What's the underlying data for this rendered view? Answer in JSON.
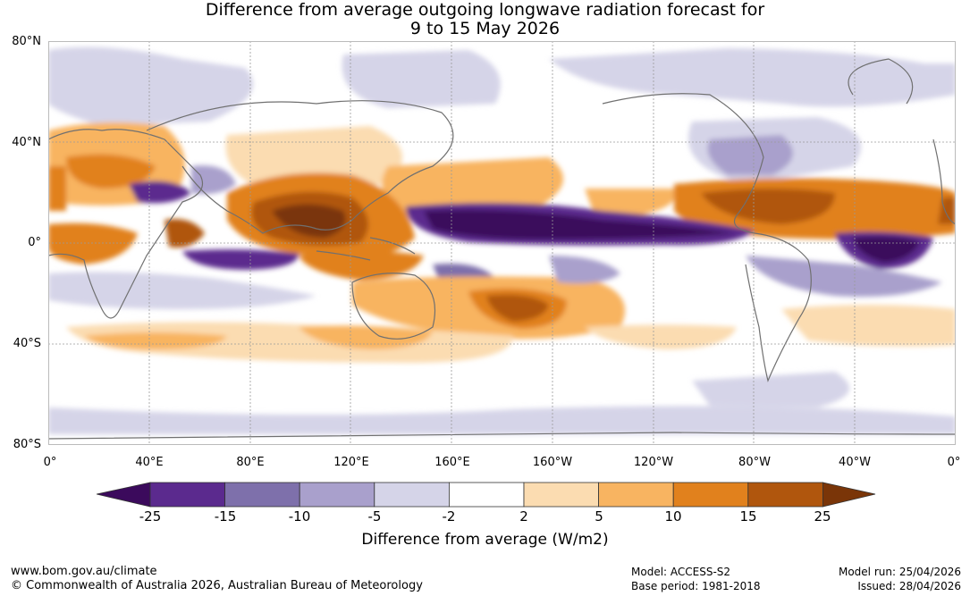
{
  "title": {
    "line1": "Difference from average outgoing longwave radiation forecast for",
    "line2": "9 to 15 May 2026"
  },
  "map": {
    "lat_labels": [
      "80°N",
      "40°N",
      "0°",
      "40°S",
      "80°S"
    ],
    "lon_labels": [
      "0°",
      "40°E",
      "80°E",
      "120°E",
      "160°E",
      "160°W",
      "120°W",
      "80°W",
      "40°W",
      "0°"
    ]
  },
  "colorbar": {
    "title": "Difference from average (W/m2)",
    "ticks": [
      "-25",
      "-15",
      "-10",
      "-5",
      "-2",
      "2",
      "5",
      "10",
      "15",
      "25"
    ],
    "colors": [
      "#3b0a5c",
      "#5b2a8e",
      "#7e70ab",
      "#a9a0cc",
      "#d5d4e8",
      "#ffffff",
      "#fbdcb1",
      "#f8b461",
      "#e1811d",
      "#b0560d",
      "#7a3508"
    ]
  },
  "footer": {
    "website": "www.bom.gov.au/climate",
    "copyright": "© Commonwealth of Australia 2026, Australian Bureau of Meteorology",
    "model": "Model: ACCESS-S2",
    "base_period": "Base period: 1981-2018",
    "model_run": "Model run: 25/04/2026",
    "issued": "Issued: 28/04/2026"
  }
}
